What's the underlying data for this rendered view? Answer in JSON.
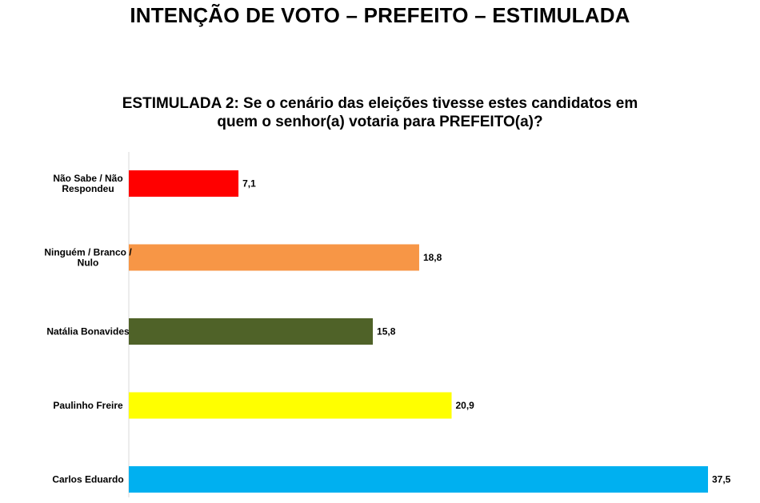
{
  "chart_data": {
    "type": "bar",
    "orientation": "horizontal",
    "title": "INTENÇÃO DE VOTO – PREFEITO – ESTIMULADA",
    "subtitle_lines": [
      "ESTIMULADA 2: Se o cenário das eleições tivesse estes candidatos em",
      "quem o senhor(a) votaria para PREFEITO(a)?"
    ],
    "categories": [
      [
        "Não Sabe / Não",
        "Respondeu"
      ],
      [
        "Ninguém / Branco /",
        "Nulo"
      ],
      [
        "Natália Bonavides"
      ],
      [
        "Paulinho Freire"
      ],
      [
        "Carlos Eduardo"
      ]
    ],
    "values": [
      7.1,
      18.8,
      15.8,
      20.9,
      37.5
    ],
    "value_labels": [
      "7,1",
      "18,8",
      "15,8",
      "20,9",
      "37,5"
    ],
    "colors": [
      "#ff0000",
      "#f79646",
      "#4f6228",
      "#ffff00",
      "#00b0f0"
    ],
    "xlim": [
      0,
      37.5
    ],
    "grid": false,
    "legend": "none"
  }
}
